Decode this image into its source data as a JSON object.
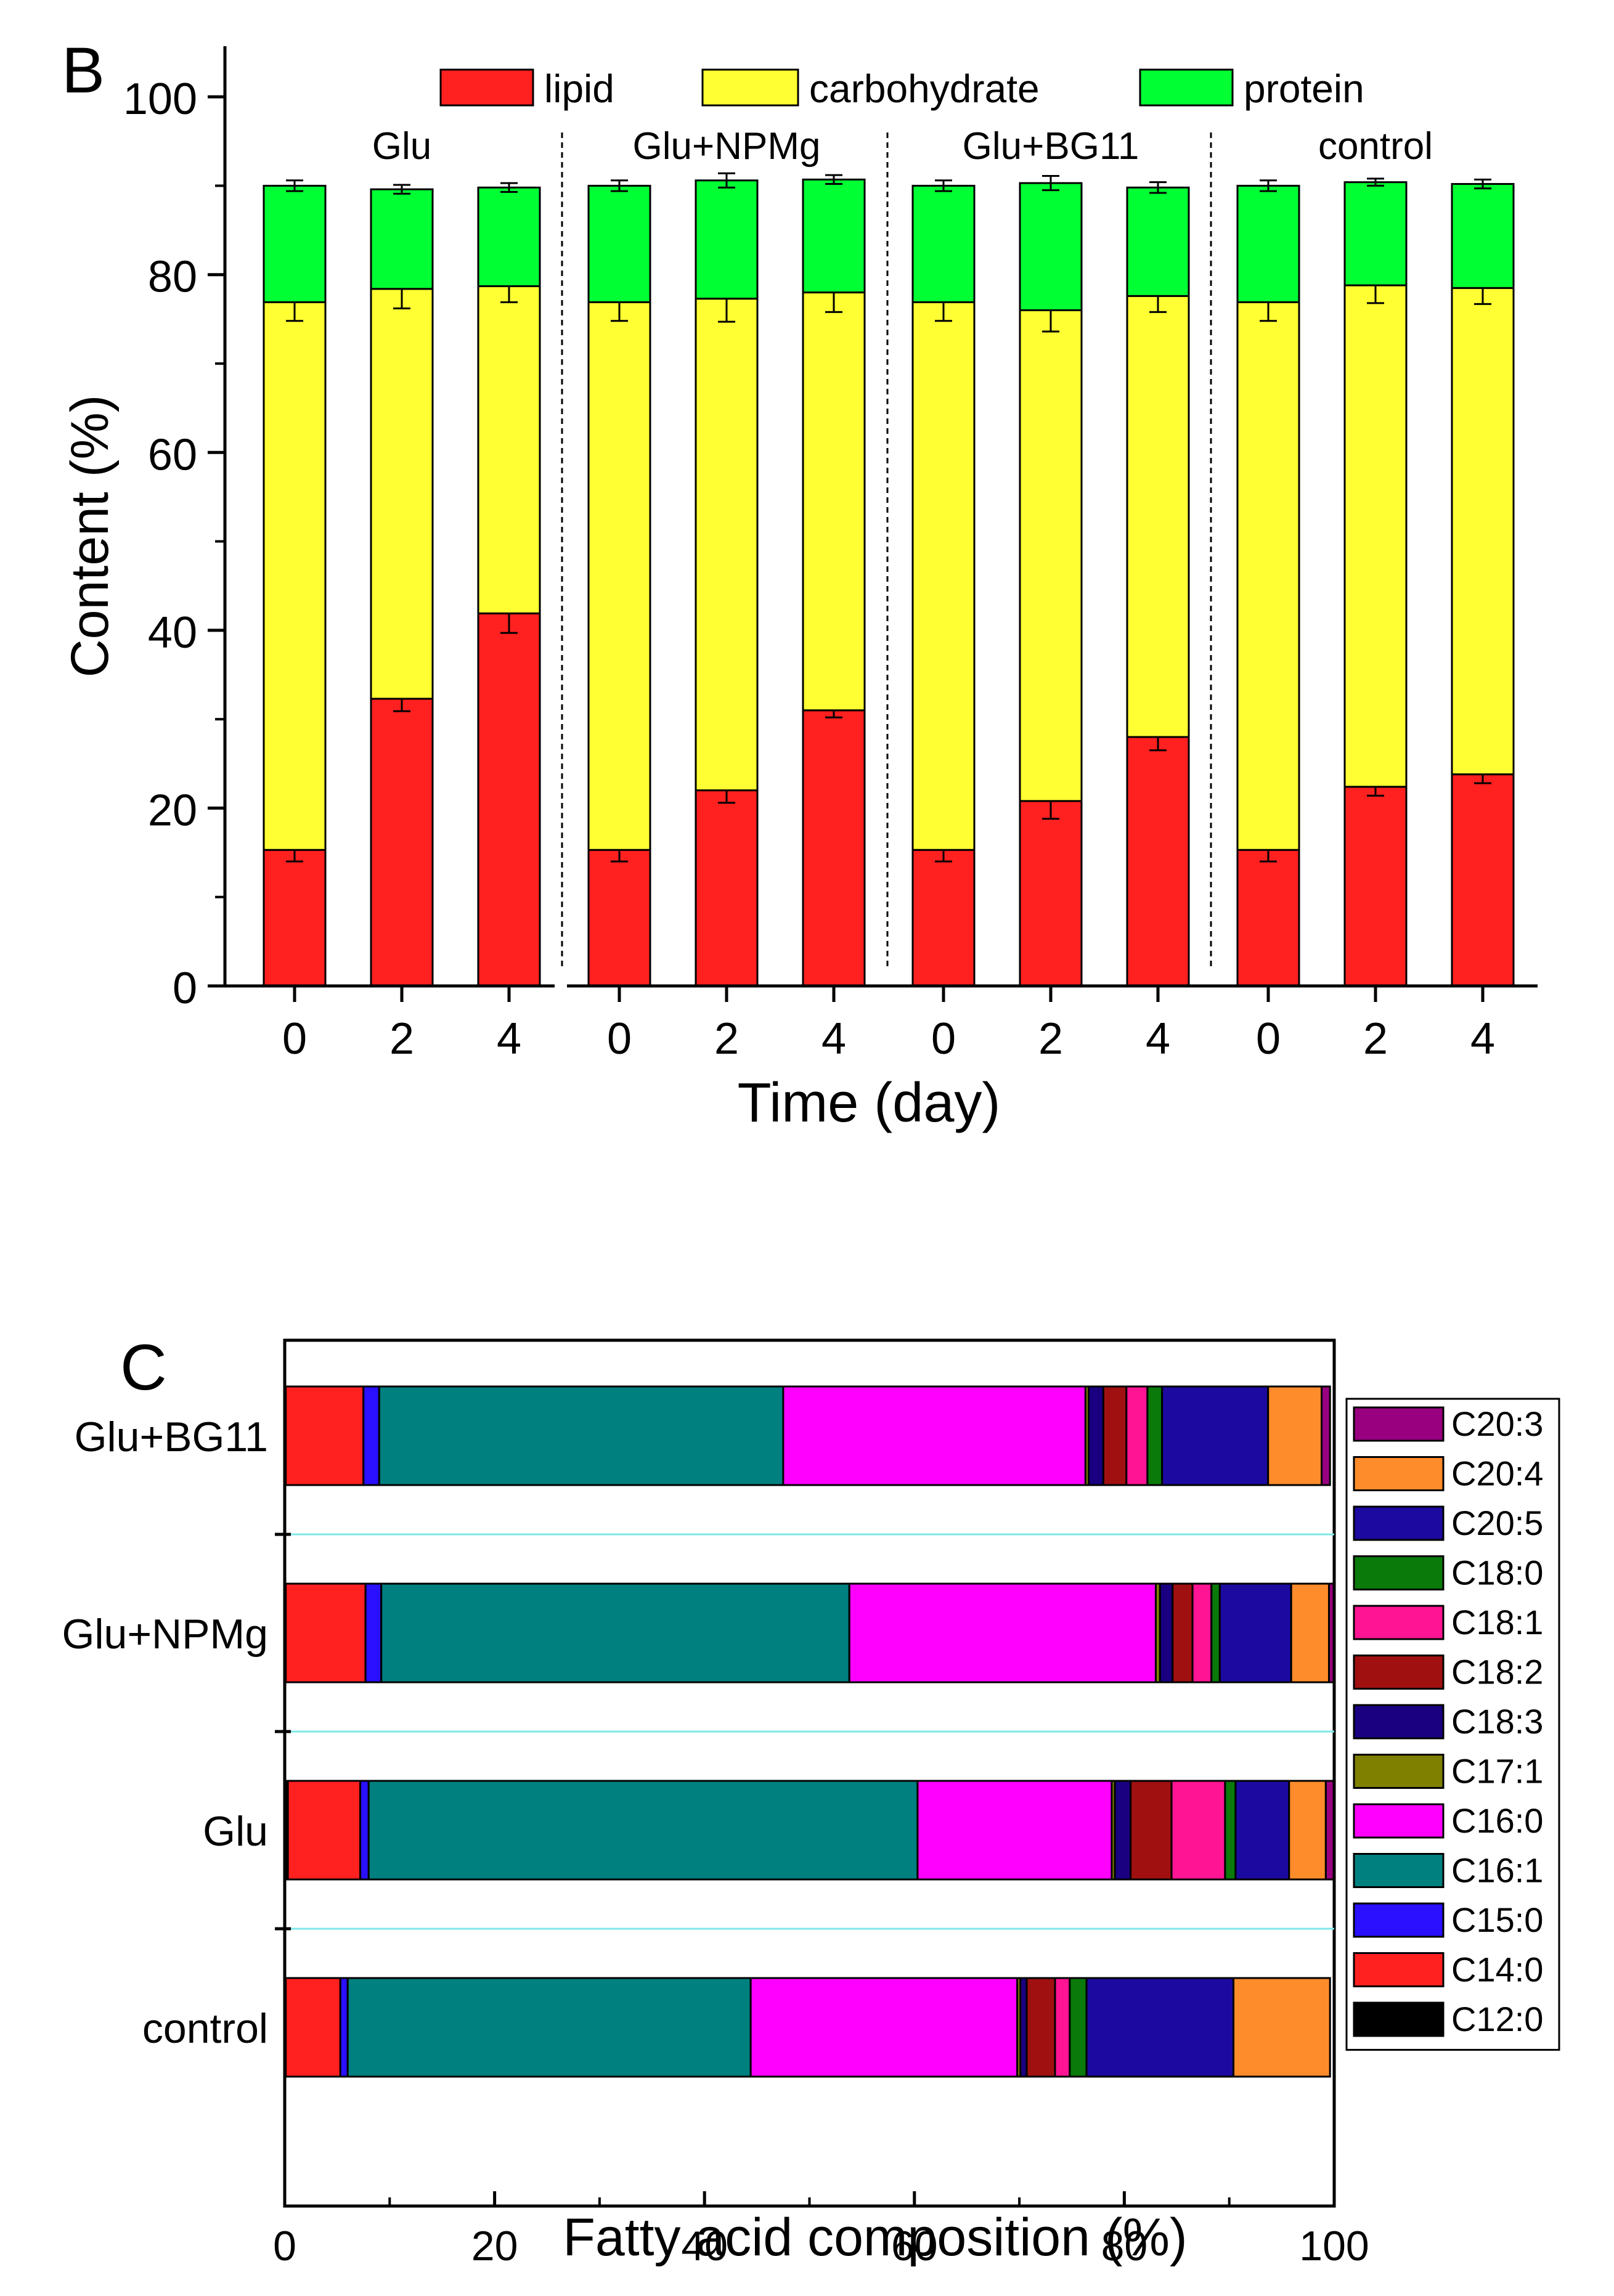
{
  "chart_data": [
    {
      "panel_label": "B",
      "type": "stacked-bar",
      "xlabel": "Time (day)",
      "ylabel": "Content (%)",
      "ylim": [
        0,
        105
      ],
      "yticks": [
        "0",
        "20",
        "40",
        "60",
        "80",
        "100"
      ],
      "grid": false,
      "legend_position": "top",
      "groups": [
        {
          "name": "Glu",
          "days": [
            "0",
            "2",
            "4"
          ]
        },
        {
          "name": "Glu+NPMg",
          "days": [
            "0",
            "2",
            "4"
          ]
        },
        {
          "name": "Glu+BG11",
          "days": [
            "0",
            "2",
            "4"
          ]
        },
        {
          "name": "control",
          "days": [
            "0",
            "2",
            "4"
          ]
        }
      ],
      "series": [
        {
          "name": "lipid",
          "color": "#ff2020",
          "values": [
            15.3,
            32.3,
            41.9,
            15.3,
            22.0,
            31.0,
            15.3,
            20.8,
            28.0,
            15.3,
            22.4,
            23.8
          ],
          "errors": [
            1.3,
            1.4,
            2.2,
            1.3,
            1.4,
            0.8,
            1.3,
            2.0,
            1.5,
            1.3,
            1.0,
            1.0
          ]
        },
        {
          "name": "carbohydrate",
          "color": "#ffff33",
          "values": [
            61.6,
            46.1,
            36.8,
            61.6,
            55.3,
            47.0,
            61.6,
            55.2,
            49.6,
            61.6,
            56.4,
            54.7
          ],
          "errors": [
            2.1,
            2.2,
            1.8,
            2.1,
            2.6,
            2.2,
            2.1,
            2.4,
            1.8,
            2.1,
            2.0,
            1.8
          ]
        },
        {
          "name": "protein",
          "color": "#00ff33",
          "values": [
            13.1,
            11.2,
            11.1,
            13.1,
            13.3,
            12.7,
            13.1,
            14.3,
            12.2,
            13.1,
            11.6,
            11.7
          ],
          "errors": [
            0.6,
            0.5,
            0.5,
            0.6,
            0.8,
            0.5,
            0.6,
            0.8,
            0.6,
            0.6,
            0.4,
            0.5
          ]
        }
      ]
    },
    {
      "panel_label": "C",
      "type": "stacked-bar-horizontal",
      "xlabel": "Fatty acid composition (%)",
      "ylabel": "",
      "xlim": [
        0,
        100
      ],
      "xticks": [
        "0",
        "20",
        "40",
        "60",
        "80",
        "100"
      ],
      "grid": false,
      "legend_position": "right",
      "categories": [
        "Glu+BG11",
        "Glu+NPMg",
        "Glu",
        "control"
      ],
      "series": [
        {
          "name": "C12:0",
          "color": "#000000",
          "values": [
            0.1,
            0.1,
            0.3,
            0.1
          ]
        },
        {
          "name": "C14:0",
          "color": "#ff2020",
          "values": [
            7.4,
            7.6,
            6.9,
            5.2
          ]
        },
        {
          "name": "C15:0",
          "color": "#2a10ff",
          "values": [
            1.5,
            1.5,
            0.8,
            0.7
          ]
        },
        {
          "name": "C16:1",
          "color": "#00807f",
          "values": [
            38.5,
            44.6,
            52.3,
            38.4
          ]
        },
        {
          "name": "C16:0",
          "color": "#ff00ff",
          "values": [
            28.8,
            29.2,
            18.5,
            25.4
          ]
        },
        {
          "name": "C17:1",
          "color": "#808000",
          "values": [
            0.3,
            0.4,
            0.3,
            0.3
          ]
        },
        {
          "name": "C18:3",
          "color": "#1a0080",
          "values": [
            1.4,
            1.2,
            1.5,
            0.6
          ]
        },
        {
          "name": "C18:2",
          "color": "#a01010",
          "values": [
            2.2,
            1.9,
            3.9,
            2.7
          ]
        },
        {
          "name": "C18:1",
          "color": "#ff1493",
          "values": [
            2.0,
            1.8,
            5.1,
            1.4
          ]
        },
        {
          "name": "C18:0",
          "color": "#0a7a0a",
          "values": [
            1.4,
            0.8,
            1.0,
            1.6
          ]
        },
        {
          "name": "C20:5",
          "color": "#1c0aa0",
          "values": [
            10.1,
            6.8,
            5.1,
            14.0
          ]
        },
        {
          "name": "C20:4",
          "color": "#ff8c2a",
          "values": [
            5.1,
            3.6,
            3.5,
            9.2
          ]
        },
        {
          "name": "C20:3",
          "color": "#990080",
          "values": [
            0.8,
            0.5,
            0.8,
            0.0
          ]
        }
      ]
    }
  ]
}
